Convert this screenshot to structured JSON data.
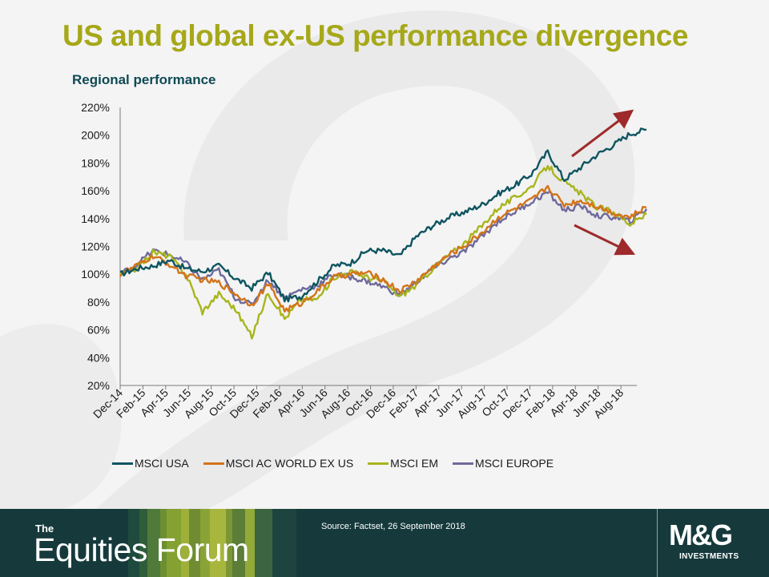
{
  "slide": {
    "title": "US and global ex-US performance divergence",
    "subtitle": "Regional performance"
  },
  "footer": {
    "brand_the": "The",
    "brand_name": "Equities Forum",
    "source": "Source: Factset, 26 September 2018",
    "logo_text": "M&G",
    "logo_sub": "INVESTMENTS"
  },
  "chart_data": {
    "type": "line",
    "title": "Regional performance",
    "xlabel": "",
    "ylabel": "",
    "ylim": [
      20,
      220
    ],
    "yticks": [
      "20%",
      "40%",
      "60%",
      "80%",
      "100%",
      "120%",
      "140%",
      "160%",
      "180%",
      "200%",
      "220%"
    ],
    "x_ticklabels": [
      "Dec-14",
      "Feb-15",
      "Apr-15",
      "Jun-15",
      "Aug-15",
      "Oct-15",
      "Dec-15",
      "Feb-16",
      "Apr-16",
      "Jun-16",
      "Aug-16",
      "Oct-16",
      "Dec-16",
      "Feb-17",
      "Apr-17",
      "Jun-17",
      "Aug-17",
      "Oct-17",
      "Dec-17",
      "Feb-18",
      "Apr-18",
      "Jun-18",
      "Aug-18"
    ],
    "grid": false,
    "legend_position": "bottom",
    "series": [
      {
        "name": "MSCI USA",
        "color": "#0e5560",
        "values": [
          100,
          104,
          106,
          110,
          104,
          102,
          106,
          97,
          90,
          101,
          82,
          84,
          95,
          106,
          108,
          117,
          117,
          113,
          127,
          135,
          141,
          145,
          150,
          158,
          164,
          172,
          188,
          168,
          177,
          186,
          193,
          201,
          204
        ]
      },
      {
        "name": "MSCI AC WORLD EX US",
        "color": "#d2741a",
        "values": [
          100,
          106,
          113,
          107,
          99,
          96,
          94,
          86,
          78,
          93,
          74,
          79,
          88,
          98,
          100,
          101,
          96,
          88,
          95,
          105,
          114,
          121,
          130,
          141,
          147,
          153,
          163,
          150,
          153,
          149,
          144,
          141,
          148
        ]
      },
      {
        "name": "MSCI EM",
        "color": "#a8b51c",
        "values": [
          100,
          104,
          116,
          113,
          100,
          73,
          86,
          75,
          55,
          87,
          68,
          82,
          82,
          98,
          102,
          98,
          95,
          84,
          92,
          104,
          114,
          123,
          135,
          148,
          155,
          163,
          178,
          166,
          158,
          148,
          145,
          136,
          143
        ]
      },
      {
        "name": "MSCI EUROPE",
        "color": "#6e6a9c",
        "values": [
          100,
          107,
          117,
          114,
          108,
          96,
          103,
          83,
          78,
          96,
          83,
          89,
          92,
          100,
          98,
          95,
          91,
          85,
          94,
          104,
          111,
          117,
          127,
          138,
          145,
          152,
          159,
          146,
          149,
          142,
          141,
          138,
          147
        ]
      }
    ],
    "annotations": [
      {
        "type": "arrow",
        "description": "upward arrow beside MSCI USA",
        "color": "#9e2a2b"
      },
      {
        "type": "arrow",
        "description": "downward arrow beside ex-US indices",
        "color": "#9e2a2b"
      }
    ]
  }
}
